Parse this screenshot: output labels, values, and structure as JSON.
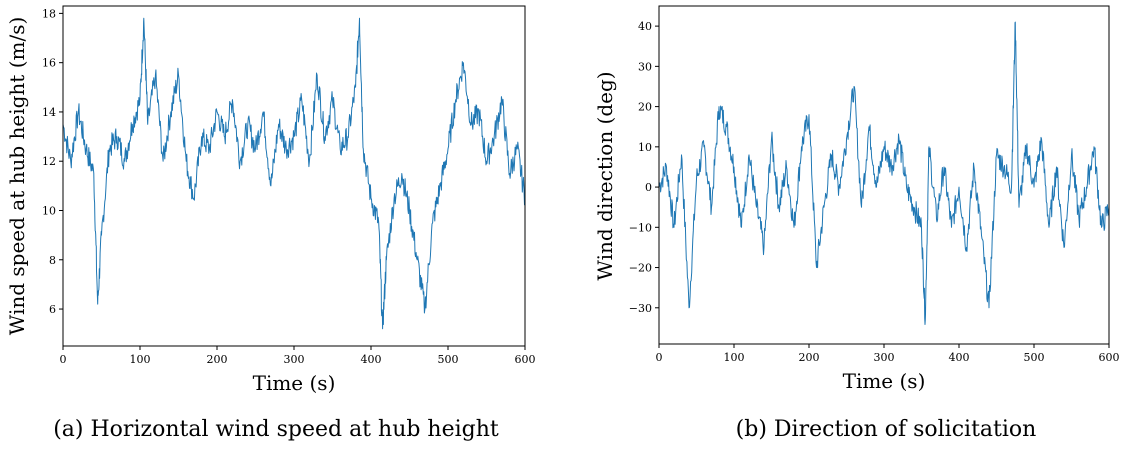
{
  "colors": {
    "series": "#1f77b4",
    "axes": "#000000"
  },
  "figure": {
    "panels": [
      {
        "caption": "(a) Horizontal wind speed at hub height",
        "xlabel": "Time (s)",
        "ylabel": "Wind speed at hub height (m/s)",
        "xticks": [
          "0",
          "100",
          "200",
          "300",
          "400",
          "500",
          "600"
        ],
        "yticks": [
          "6",
          "8",
          "10",
          "12",
          "14",
          "16",
          "18"
        ]
      },
      {
        "caption": "(b) Direction of solicitation",
        "xlabel": "Time (s)",
        "ylabel": "Wind direction (deg)",
        "xticks": [
          "0",
          "100",
          "200",
          "300",
          "400",
          "500",
          "600"
        ],
        "yticks": [
          "−30",
          "−20",
          "−10",
          "0",
          "10",
          "20",
          "30",
          "40"
        ]
      }
    ]
  },
  "chart_data": [
    {
      "type": "line",
      "title": "",
      "xlabel": "Time (s)",
      "ylabel": "Wind speed at hub height (m/s)",
      "xlim": [
        0,
        600
      ],
      "ylim": [
        4.5,
        18.3
      ],
      "grid": false,
      "series": [
        {
          "x": [
            0,
            10,
            20,
            30,
            40,
            45,
            50,
            60,
            70,
            80,
            90,
            100,
            105,
            110,
            120,
            130,
            140,
            150,
            160,
            170,
            180,
            190,
            200,
            210,
            220,
            230,
            240,
            250,
            260,
            270,
            280,
            290,
            300,
            310,
            320,
            330,
            340,
            350,
            360,
            370,
            380,
            385,
            390,
            400,
            410,
            415,
            420,
            430,
            440,
            450,
            460,
            470,
            480,
            490,
            500,
            510,
            520,
            530,
            540,
            550,
            560,
            570,
            580,
            590,
            600
          ],
          "values": [
            13.5,
            12.0,
            14.0,
            12.5,
            11.5,
            6.2,
            9.0,
            12.5,
            13.0,
            12.0,
            13.5,
            14.5,
            17.8,
            13.5,
            15.5,
            12.0,
            14.0,
            15.5,
            12.0,
            10.5,
            13.0,
            12.5,
            14.0,
            13.0,
            14.5,
            12.0,
            13.5,
            12.5,
            14.0,
            11.0,
            13.5,
            12.5,
            13.0,
            14.5,
            12.0,
            15.5,
            13.0,
            14.5,
            12.5,
            13.0,
            15.0,
            17.8,
            12.5,
            10.5,
            9.5,
            5.2,
            8.0,
            10.5,
            11.5,
            10.0,
            8.0,
            6.0,
            9.5,
            11.0,
            12.5,
            14.5,
            16.0,
            13.5,
            14.0,
            12.0,
            13.0,
            14.5,
            11.5,
            12.5,
            10.5
          ],
          "color": "#1f77b4"
        }
      ]
    },
    {
      "type": "line",
      "title": "",
      "xlabel": "Time (s)",
      "ylabel": "Wind direction (deg)",
      "xlim": [
        0,
        600
      ],
      "ylim": [
        -39,
        45
      ],
      "grid": false,
      "series": [
        {
          "x": [
            0,
            10,
            20,
            30,
            40,
            50,
            60,
            70,
            80,
            90,
            100,
            110,
            120,
            130,
            140,
            150,
            160,
            170,
            180,
            190,
            200,
            210,
            220,
            230,
            240,
            250,
            260,
            270,
            280,
            290,
            300,
            310,
            320,
            330,
            340,
            350,
            355,
            360,
            370,
            380,
            390,
            400,
            410,
            420,
            430,
            440,
            450,
            460,
            470,
            475,
            480,
            490,
            500,
            510,
            520,
            530,
            540,
            550,
            560,
            570,
            580,
            590,
            600
          ],
          "values": [
            0,
            5,
            -10,
            8,
            -30,
            2,
            10,
            -5,
            20,
            15,
            5,
            -10,
            8,
            -5,
            -15,
            12,
            -5,
            5,
            -10,
            10,
            18,
            -20,
            -5,
            8,
            0,
            12,
            25,
            -5,
            15,
            0,
            10,
            5,
            12,
            0,
            -5,
            -10,
            -33,
            10,
            -8,
            5,
            -10,
            0,
            -15,
            5,
            -12,
            -30,
            8,
            5,
            0,
            41,
            -5,
            10,
            0,
            12,
            -10,
            5,
            -15,
            8,
            -8,
            0,
            10,
            -10,
            -5
          ],
          "color": "#1f77b4"
        }
      ]
    }
  ]
}
